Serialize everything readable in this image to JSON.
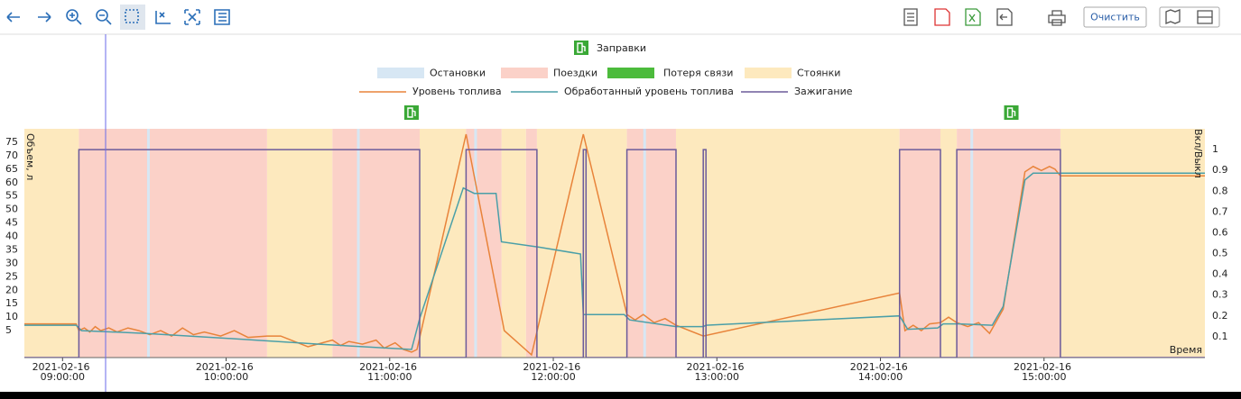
{
  "toolbar": {
    "clear_button": "Очистить"
  },
  "chart_data": {
    "type": "timeline",
    "y_label": "Объем, л",
    "y2_label": "Вкл/Выкл",
    "x_label": "Время",
    "refuels": {
      "name": "Заправки",
      "color": "#3aa836",
      "x": [
        "2021-02-16 11:08:00",
        "2021-02-16 14:48:00"
      ]
    },
    "xlim": [
      "2021-02-16 08:46:00",
      "2021-02-16 15:59:00"
    ],
    "xticks": [
      "2021-02-16 09:00:00",
      "2021-02-16 10:00:00",
      "2021-02-16 11:00:00",
      "2021-02-16 12:00:00",
      "2021-02-16 13:00:00",
      "2021-02-16 14:00:00",
      "2021-02-16 15:00:00"
    ],
    "ylim": [
      -5,
      80
    ],
    "yticks": [
      5,
      10,
      15,
      20,
      25,
      30,
      35,
      40,
      45,
      50,
      55,
      60,
      65,
      70,
      75
    ],
    "y2lim": [
      0,
      1.1
    ],
    "y2ticks": [
      0.1,
      0.2,
      0.3,
      0.4,
      0.5,
      0.6,
      0.7,
      0.8,
      0.9,
      1
    ],
    "bands": [
      {
        "name": "Остановки",
        "color": "#d7e7f4",
        "intervals": [
          [
            "2021-02-16 09:31:00",
            "2021-02-16 09:32:00"
          ],
          [
            "2021-02-16 10:48:00",
            "2021-02-16 10:49:00"
          ],
          [
            "2021-02-16 11:31:00",
            "2021-02-16 11:32:00"
          ],
          [
            "2021-02-16 12:33:00",
            "2021-02-16 12:34:00"
          ],
          [
            "2021-02-16 14:33:00",
            "2021-02-16 14:34:00"
          ]
        ]
      },
      {
        "name": "Поездки",
        "color": "#fbd1c8",
        "intervals": [
          [
            "2021-02-16 09:06:00",
            "2021-02-16 10:15:00"
          ],
          [
            "2021-02-16 10:39:00",
            "2021-02-16 11:11:00"
          ],
          [
            "2021-02-16 11:28:00",
            "2021-02-16 11:41:00"
          ],
          [
            "2021-02-16 11:50:00",
            "2021-02-16 11:54:00"
          ],
          [
            "2021-02-16 12:27:00",
            "2021-02-16 12:45:00"
          ],
          [
            "2021-02-16 14:07:00",
            "2021-02-16 14:22:00"
          ],
          [
            "2021-02-16 14:28:00",
            "2021-02-16 15:06:00"
          ]
        ]
      },
      {
        "name": "Потеря связи",
        "color": "#4cbb3c",
        "intervals": []
      },
      {
        "name": "Стоянки",
        "color": "#fde9be",
        "intervals": [
          [
            "2021-02-16 08:46:00",
            "2021-02-16 09:06:00"
          ],
          [
            "2021-02-16 10:15:00",
            "2021-02-16 10:39:00"
          ],
          [
            "2021-02-16 11:11:00",
            "2021-02-16 11:28:00"
          ],
          [
            "2021-02-16 11:41:00",
            "2021-02-16 11:50:00"
          ],
          [
            "2021-02-16 11:54:00",
            "2021-02-16 12:27:00"
          ],
          [
            "2021-02-16 12:45:00",
            "2021-02-16 14:07:00"
          ],
          [
            "2021-02-16 14:22:00",
            "2021-02-16 14:28:00"
          ],
          [
            "2021-02-16 15:06:00",
            "2021-02-16 15:59:00"
          ]
        ]
      }
    ],
    "series": [
      {
        "name": "Уровень топлива",
        "color": "#e8833a",
        "x": [
          "2021-02-16 08:46:00",
          "2021-02-16 09:05:00",
          "2021-02-16 09:06:00",
          "2021-02-16 09:08:00",
          "2021-02-16 09:10:00",
          "2021-02-16 09:12:00",
          "2021-02-16 09:14:00",
          "2021-02-16 09:17:00",
          "2021-02-16 09:20:00",
          "2021-02-16 09:24:00",
          "2021-02-16 09:28:00",
          "2021-02-16 09:32:00",
          "2021-02-16 09:36:00",
          "2021-02-16 09:40:00",
          "2021-02-16 09:44:00",
          "2021-02-16 09:48:00",
          "2021-02-16 09:52:00",
          "2021-02-16 09:58:00",
          "2021-02-16 10:03:00",
          "2021-02-16 10:08:00",
          "2021-02-16 10:15:00",
          "2021-02-16 10:20:00",
          "2021-02-16 10:30:00",
          "2021-02-16 10:39:00",
          "2021-02-16 10:42:00",
          "2021-02-16 10:45:00",
          "2021-02-16 10:50:00",
          "2021-02-16 10:55:00",
          "2021-02-16 10:58:00",
          "2021-02-16 11:02:00",
          "2021-02-16 11:05:00",
          "2021-02-16 11:08:00",
          "2021-02-16 11:10:00",
          "2021-02-16 11:28:00",
          "2021-02-16 11:42:00",
          "2021-02-16 11:52:00",
          "2021-02-16 12:11:00",
          "2021-02-16 12:27:00",
          "2021-02-16 12:30:00",
          "2021-02-16 12:33:00",
          "2021-02-16 12:37:00",
          "2021-02-16 12:41:00",
          "2021-02-16 12:45:00",
          "2021-02-16 12:55:00",
          "2021-02-16 14:07:00",
          "2021-02-16 14:09:00",
          "2021-02-16 14:12:00",
          "2021-02-16 14:15:00",
          "2021-02-16 14:18:00",
          "2021-02-16 14:22:00",
          "2021-02-16 14:25:00",
          "2021-02-16 14:28:00",
          "2021-02-16 14:32:00",
          "2021-02-16 14:36:00",
          "2021-02-16 14:40:00",
          "2021-02-16 14:45:00",
          "2021-02-16 14:53:00",
          "2021-02-16 14:56:00",
          "2021-02-16 14:59:00",
          "2021-02-16 15:02:00",
          "2021-02-16 15:04:00",
          "2021-02-16 15:06:00",
          "2021-02-16 15:59:00"
        ],
        "values": [
          7.5,
          7.5,
          5,
          6,
          4.5,
          6.5,
          5,
          6,
          4.5,
          6,
          5,
          3.5,
          5,
          3,
          6,
          3.5,
          4.5,
          3,
          5,
          2.5,
          3,
          3,
          -1,
          1.5,
          -0.5,
          1,
          0,
          1.5,
          -1.5,
          0.5,
          -2,
          -3,
          -2,
          78,
          5,
          -4,
          78,
          11,
          9,
          11,
          8,
          9.5,
          7,
          3,
          19,
          5,
          7,
          5,
          7.5,
          8,
          10,
          8,
          6.5,
          8,
          4,
          13,
          64,
          66,
          64.5,
          66,
          65,
          62.5,
          62.5
        ]
      },
      {
        "name": "Обработанный уровень топлива",
        "color": "#4a9fa8",
        "x": [
          "2021-02-16 08:46:00",
          "2021-02-16 09:05:00",
          "2021-02-16 09:07:00",
          "2021-02-16 09:30:00",
          "2021-02-16 10:03:00",
          "2021-02-16 10:34:00",
          "2021-02-16 11:08:00",
          "2021-02-16 11:11:00",
          "2021-02-16 11:27:00",
          "2021-02-16 11:31:00",
          "2021-02-16 11:39:00",
          "2021-02-16 11:41:00",
          "2021-02-16 11:55:00",
          "2021-02-16 12:10:00",
          "2021-02-16 12:11:00",
          "2021-02-16 12:26:00",
          "2021-02-16 12:28:00",
          "2021-02-16 12:45:00",
          "2021-02-16 12:55:00",
          "2021-02-16 12:56:00",
          "2021-02-16 14:07:00",
          "2021-02-16 14:10:00",
          "2021-02-16 14:21:00",
          "2021-02-16 14:23:00",
          "2021-02-16 14:29:00",
          "2021-02-16 14:41:00",
          "2021-02-16 14:45:00",
          "2021-02-16 14:53:00",
          "2021-02-16 14:56:00",
          "2021-02-16 15:59:00"
        ],
        "values": [
          7,
          7,
          5,
          4,
          2,
          0,
          -2,
          9.5,
          58,
          56,
          56,
          38,
          36,
          33.5,
          11,
          11,
          9,
          6.5,
          6.5,
          7,
          10.5,
          5.5,
          6,
          7.5,
          7.5,
          7,
          14,
          61,
          63.5,
          63.5
        ]
      },
      {
        "name": "Зажигание",
        "color": "#6b5b9a",
        "axis": "y2",
        "x": [
          "2021-02-16 08:46:00",
          "2021-02-16 09:06:00",
          "2021-02-16 09:06:00",
          "2021-02-16 11:11:00",
          "2021-02-16 11:11:00",
          "2021-02-16 11:28:00",
          "2021-02-16 11:28:00",
          "2021-02-16 11:54:00",
          "2021-02-16 11:54:00",
          "2021-02-16 12:11:00",
          "2021-02-16 12:11:00",
          "2021-02-16 12:12:00",
          "2021-02-16 12:12:00",
          "2021-02-16 12:27:00",
          "2021-02-16 12:27:00",
          "2021-02-16 12:45:00",
          "2021-02-16 12:45:00",
          "2021-02-16 12:55:00",
          "2021-02-16 12:55:00",
          "2021-02-16 12:56:00",
          "2021-02-16 12:56:00",
          "2021-02-16 14:07:00",
          "2021-02-16 14:07:00",
          "2021-02-16 14:22:00",
          "2021-02-16 14:22:00",
          "2021-02-16 14:28:00",
          "2021-02-16 14:28:00",
          "2021-02-16 15:06:00",
          "2021-02-16 15:06:00",
          "2021-02-16 15:59:00"
        ],
        "values": [
          0,
          0,
          1,
          1,
          0,
          0,
          1,
          1,
          0,
          0,
          1,
          1,
          0,
          0,
          1,
          1,
          0,
          0,
          1,
          1,
          0,
          0,
          1,
          1,
          0,
          0,
          1,
          1,
          0,
          0
        ]
      }
    ]
  }
}
